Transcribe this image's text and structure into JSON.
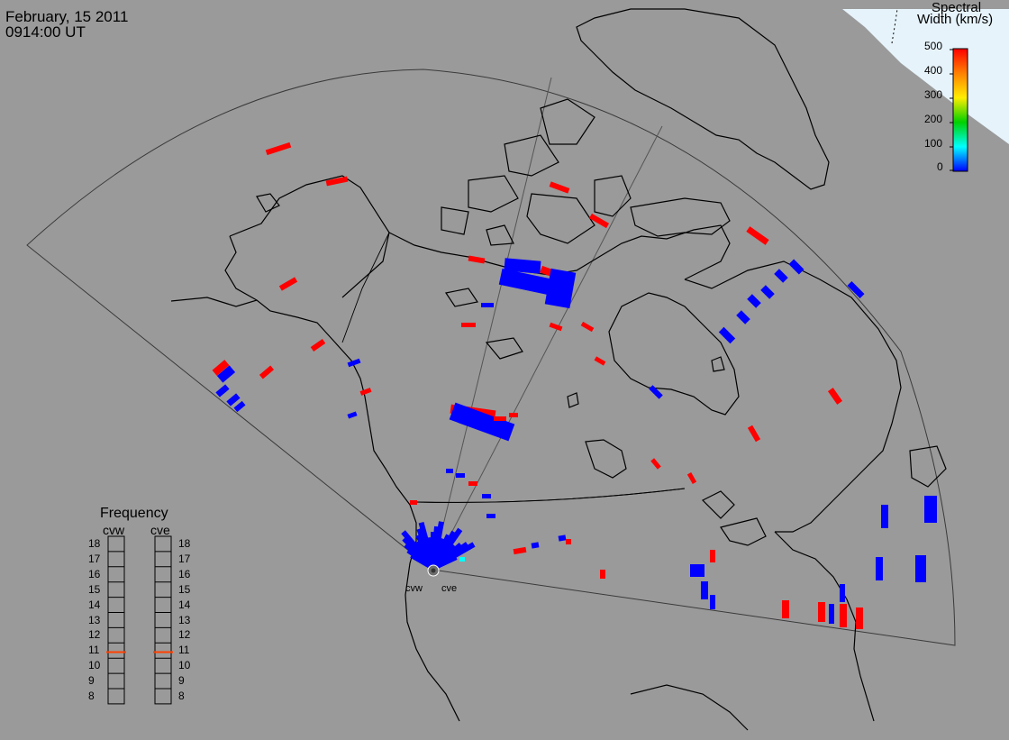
{
  "header": {
    "date": "February, 15 2011",
    "time": "0914:00 UT"
  },
  "colorbar": {
    "title_line1": "Spectral",
    "title_line2": "Width (km/s)",
    "ticks": [
      "500",
      "400",
      "300",
      "200",
      "100",
      "0"
    ],
    "colors": [
      "#ff0000",
      "#ff8000",
      "#ffff00",
      "#00e000",
      "#00ffff",
      "#0000ff"
    ]
  },
  "radars": [
    {
      "name": "cvw"
    },
    {
      "name": "cve"
    }
  ],
  "frequency_panel": {
    "title": "Frequency",
    "columns": [
      "cvw",
      "cve"
    ],
    "levels": [
      "18",
      "17",
      "16",
      "15",
      "14",
      "13",
      "12",
      "11",
      "10",
      "9",
      "8"
    ],
    "values_mhz": {
      "cvw": 10.9,
      "cve": 10.9
    },
    "marker_color": "#ff4000"
  },
  "colors": {
    "background": "#9a9a9a",
    "coast": "#000000",
    "fov": "#404040",
    "low_width": "#0000ff",
    "high_width": "#ff0000",
    "daylight": "#e4f2fa"
  }
}
